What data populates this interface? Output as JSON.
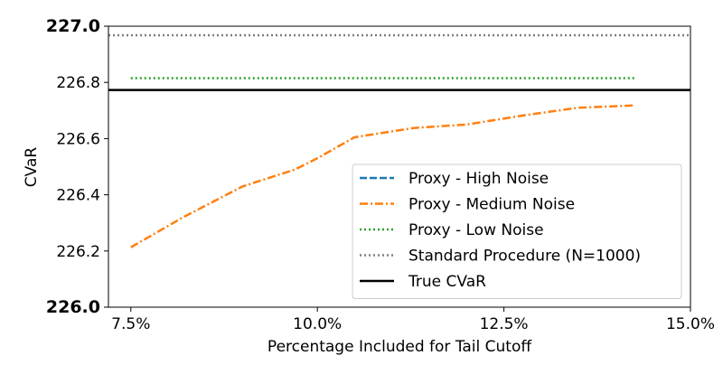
{
  "chart_data": {
    "type": "line",
    "title": "",
    "xlabel": "Percentage Included for Tail Cutoff",
    "ylabel": "CVaR",
    "xlim": [
      7.2,
      15.0
    ],
    "ylim": [
      226.0,
      227.0
    ],
    "xticks": [
      {
        "value": 7.5,
        "label": "7.5%"
      },
      {
        "value": 10.0,
        "label": "10.0%"
      },
      {
        "value": 12.5,
        "label": "12.5%"
      },
      {
        "value": 15.0,
        "label": "15.0%"
      }
    ],
    "yticks": [
      {
        "value": 226.0,
        "label": "226.0",
        "bold": true
      },
      {
        "value": 226.2,
        "label": "226.2",
        "bold": false
      },
      {
        "value": 226.4,
        "label": "226.4",
        "bold": false
      },
      {
        "value": 226.6,
        "label": "226.6",
        "bold": false
      },
      {
        "value": 226.8,
        "label": "226.8",
        "bold": false
      },
      {
        "value": 227.0,
        "label": "227.0",
        "bold": true
      }
    ],
    "grid": false,
    "legend_position": "lower-right",
    "series": [
      {
        "name": "Proxy - High Noise",
        "color": "#1f77b4",
        "style": "dashed",
        "x": [],
        "y": []
      },
      {
        "name": "Proxy - Medium Noise",
        "color": "#ff7f0e",
        "style": "dashdot",
        "x": [
          7.5,
          8.2,
          9.0,
          9.7,
          10.0,
          10.5,
          11.3,
          12.0,
          12.75,
          13.5,
          14.25
        ],
        "y": [
          226.213,
          226.32,
          226.43,
          226.49,
          226.53,
          226.605,
          226.638,
          226.65,
          226.682,
          226.71,
          226.718
        ]
      },
      {
        "name": "Proxy - Low Noise",
        "color": "#2ca02c",
        "style": "dotted",
        "x": [
          7.5,
          14.25
        ],
        "y": [
          226.815,
          226.815
        ]
      },
      {
        "name": "Standard Procedure (N=1000)",
        "color": "#7f7f7f",
        "style": "dotted",
        "x": [
          7.2,
          15.0
        ],
        "y": [
          226.968,
          226.968
        ]
      },
      {
        "name": "True CVaR",
        "color": "#000000",
        "style": "solid",
        "x": [
          7.2,
          15.0
        ],
        "y": [
          226.773,
          226.773
        ]
      }
    ]
  }
}
